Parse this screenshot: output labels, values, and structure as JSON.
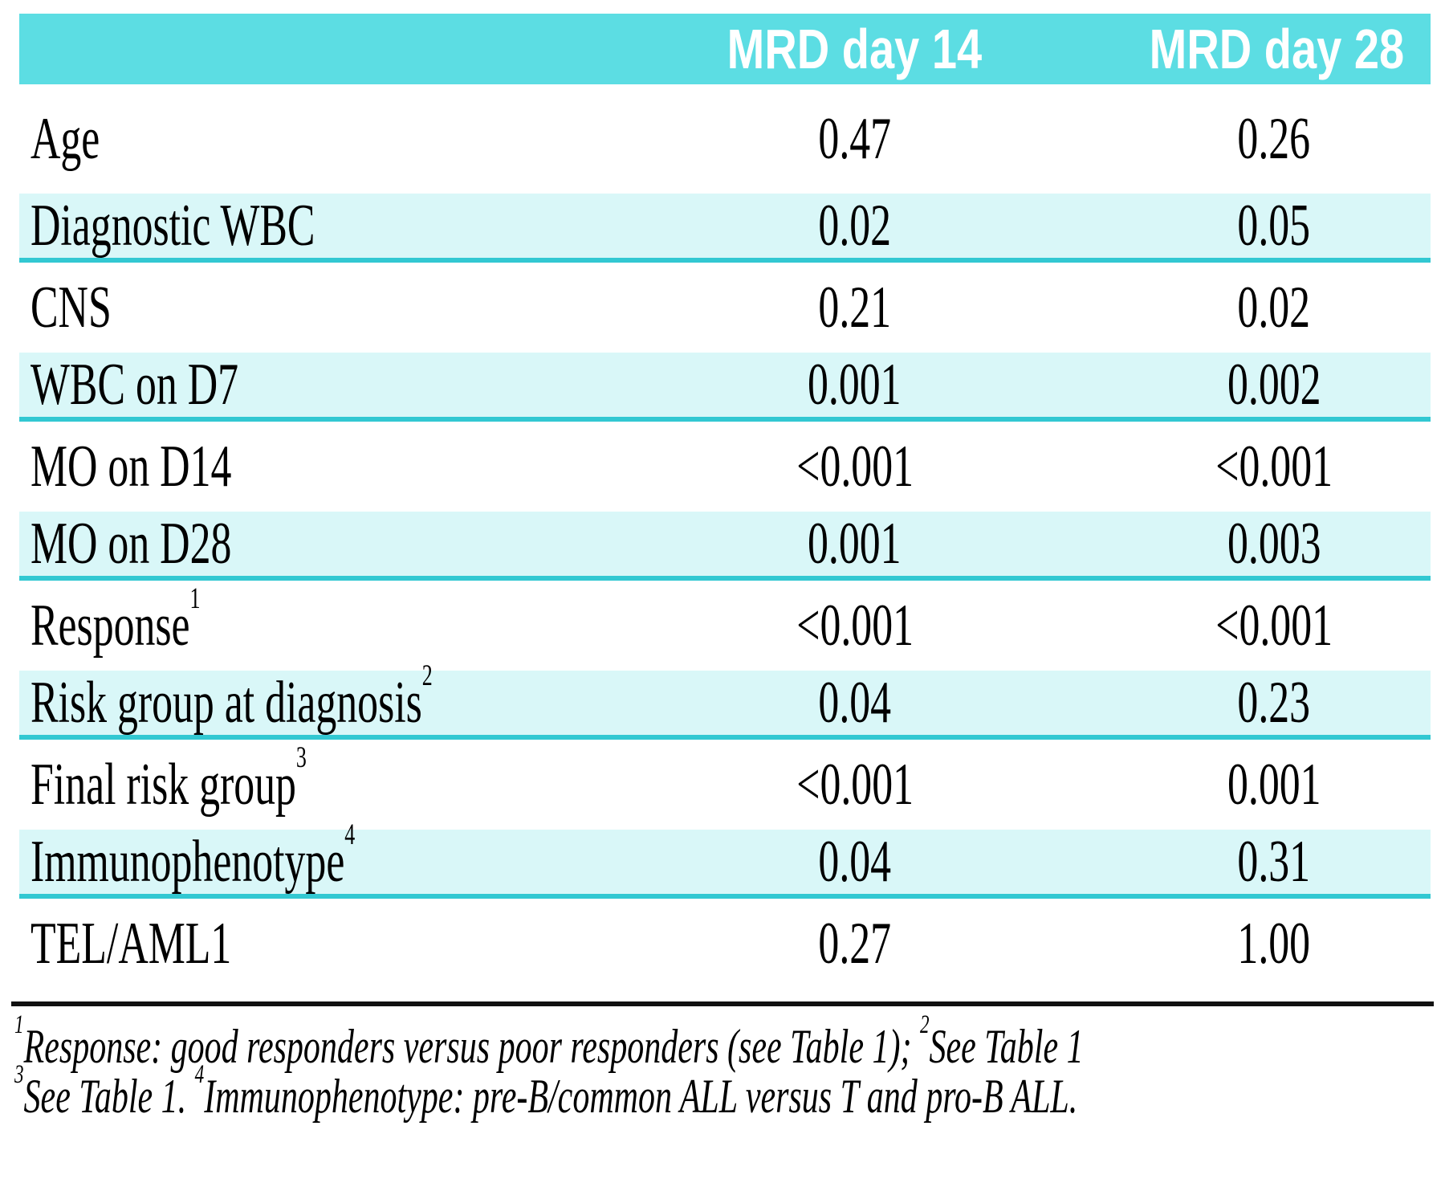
{
  "colors": {
    "header_bg": "#5CDDE3",
    "row_shade": "#D9F7F8",
    "row_divider": "#32C8D2",
    "rule": "#111111",
    "header_text": "#FFFFFF",
    "body_text": "#000000"
  },
  "table": {
    "header": {
      "col_label": "",
      "col_day14": "MRD day 14",
      "col_day28": "MRD day 28"
    },
    "rows": [
      {
        "label": "Age",
        "sup": "",
        "d14": "0.47",
        "d28": "0.26"
      },
      {
        "label": "Diagnostic WBC",
        "sup": "",
        "d14": "0.02",
        "d28": "0.05"
      },
      {
        "label": "CNS",
        "sup": "",
        "d14": "0.21",
        "d28": "0.02"
      },
      {
        "label": "WBC on D7",
        "sup": "",
        "d14": "0.001",
        "d28": "0.002"
      },
      {
        "label": "MO on D14",
        "sup": "",
        "d14": "<0.001",
        "d28": "<0.001"
      },
      {
        "label": "MO on D28",
        "sup": "",
        "d14": "0.001",
        "d28": "0.003"
      },
      {
        "label": "Response",
        "sup": "1",
        "d14": "<0.001",
        "d28": "<0.001"
      },
      {
        "label": "Risk group at diagnosis",
        "sup": "2",
        "d14": "0.04",
        "d28": "0.23"
      },
      {
        "label": "Final risk group",
        "sup": "3",
        "d14": "<0.001",
        "d28": "0.001"
      },
      {
        "label": "Immunophenotype",
        "sup": "4",
        "d14": "0.04",
        "d28": "0.31"
      },
      {
        "label": "TEL/AML1",
        "sup": "",
        "d14": "0.27",
        "d28": "1.00"
      }
    ]
  },
  "footnotes": {
    "line1": {
      "sup_a": "1",
      "text_a": "Response: good responders versus poor responders (see Table 1); ",
      "sup_b": "2",
      "text_b": "See Table 1"
    },
    "line2": {
      "sup_a": "3",
      "text_a": "See Table 1. ",
      "sup_b": "4",
      "text_b": "Immunophenotype: pre-B/common ALL versus T and pro-B ALL."
    }
  }
}
